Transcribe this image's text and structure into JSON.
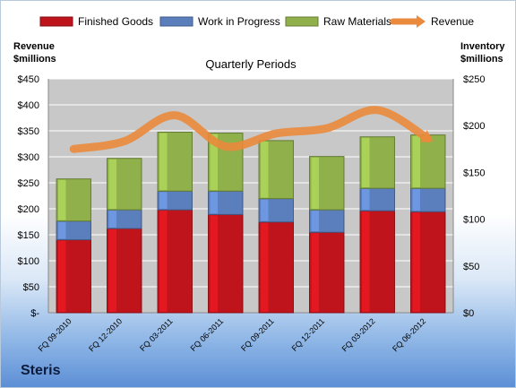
{
  "chart_data": {
    "type": "bar",
    "stacked": true,
    "title": "Quarterly Periods",
    "categories": [
      "FQ 09-2010",
      "FQ 12-2010",
      "FQ 03-2011",
      "FQ 06-2011",
      "FQ 09-2011",
      "FQ 12-2011",
      "FQ 03-2012",
      "FQ 06-2012"
    ],
    "series": [
      {
        "name": "Finished Goods",
        "axis": "right",
        "color": "#c0141c",
        "values": [
          78,
          90,
          110,
          105,
          97,
          86,
          109,
          108
        ]
      },
      {
        "name": "Work in Progress",
        "axis": "right",
        "color": "#5b7fbd",
        "values": [
          20,
          20,
          20,
          25,
          25,
          24,
          24,
          25
        ]
      },
      {
        "name": "Raw Materials",
        "axis": "right",
        "color": "#8fb04a",
        "values": [
          45,
          55,
          63,
          62,
          62,
          57,
          55,
          57
        ]
      },
      {
        "name": "Revenue",
        "axis": "left",
        "type": "line",
        "color": "#ea8a3c",
        "values": [
          315,
          330,
          380,
          320,
          345,
          355,
          390,
          335
        ]
      }
    ],
    "left_axis": {
      "label": "Revenue\n$millions",
      "min": 0,
      "max": 450,
      "step": 50,
      "ticks": [
        "$-",
        "$50",
        "$100",
        "$150",
        "$200",
        "$250",
        "$300",
        "$350",
        "$400",
        "$450"
      ]
    },
    "right_axis": {
      "label": "Inventory\n$millions",
      "min": 0,
      "max": 250,
      "step": 50,
      "ticks": [
        "$0",
        "$50",
        "$100",
        "$150",
        "$200",
        "$250"
      ]
    },
    "legend_position": "top",
    "grid": true
  },
  "labels": {
    "left_axis_title_1": "Revenue",
    "left_axis_title_2": "$millions",
    "right_axis_title_1": "Inventory",
    "right_axis_title_2": "$millions",
    "company": "Steris"
  }
}
